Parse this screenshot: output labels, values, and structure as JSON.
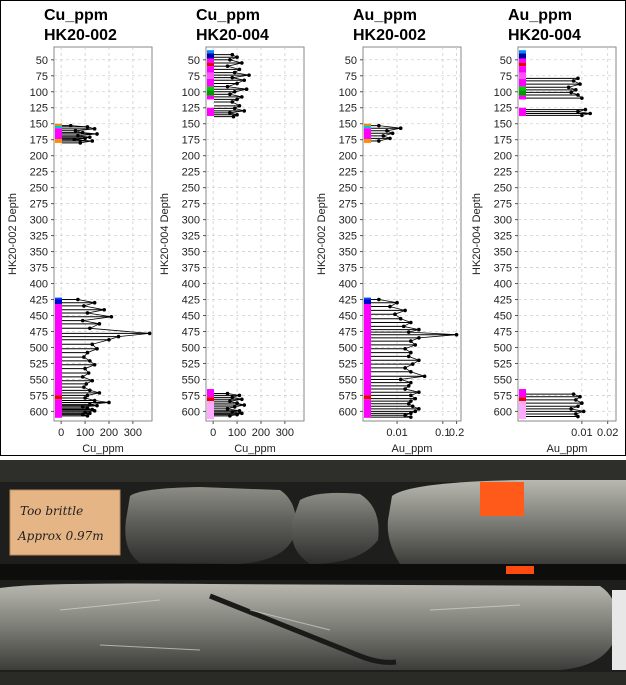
{
  "chart_data": [
    {
      "type": "scatter",
      "title": [
        "Cu_ppm",
        "HK20-002"
      ],
      "xlabel": "Cu_ppm",
      "ylabel": "HK20-002 Depth",
      "x_scale": "linear",
      "xlim": [
        -30,
        380
      ],
      "x_ticks": [
        0,
        100,
        200,
        300
      ],
      "x_tick_labels": [
        "0",
        "100",
        "200",
        "300"
      ],
      "ylim": [
        30,
        615
      ],
      "y_ticks": [
        50,
        75,
        100,
        125,
        150,
        175,
        200,
        225,
        250,
        275,
        300,
        325,
        350,
        375,
        400,
        425,
        450,
        475,
        500,
        525,
        550,
        575,
        600
      ],
      "series": [
        {
          "x": [
            40,
            110,
            140,
            60,
            90,
            150,
            70,
            120,
            100,
            55,
            130,
            80
          ],
          "y": [
            153,
            155,
            158,
            161,
            164,
            166,
            169,
            171,
            173,
            175,
            177,
            180
          ]
        },
        {
          "x": [
            70,
            140,
            95,
            180,
            110,
            210,
            90,
            160,
            120,
            370,
            240,
            200,
            130,
            150,
            110,
            95,
            120,
            140,
            100,
            115,
            90,
            130,
            105,
            95,
            120,
            160,
            110,
            100,
            140,
            200,
            120,
            150,
            90,
            110,
            130,
            140,
            100,
            120,
            90,
            110
          ],
          "y": [
            425,
            430,
            435,
            441,
            446,
            452,
            458,
            463,
            470,
            478,
            483,
            488,
            495,
            502,
            508,
            515,
            521,
            527,
            533,
            540,
            546,
            552,
            557,
            562,
            567,
            571,
            575,
            579,
            583,
            586,
            589,
            591,
            593,
            595,
            597,
            599,
            601,
            603,
            605,
            607
          ]
        }
      ],
      "strip": [
        {
          "from": 150,
          "to": 153,
          "color": "#ff7f00"
        },
        {
          "from": 153,
          "to": 157,
          "color": "#00c8c8"
        },
        {
          "from": 157,
          "to": 174,
          "color": "#ff00ff"
        },
        {
          "from": 174,
          "to": 180,
          "color": "#ff8c00"
        },
        {
          "from": 422,
          "to": 425,
          "color": "#0044ff"
        },
        {
          "from": 425,
          "to": 432,
          "color": "#0000cc"
        },
        {
          "from": 432,
          "to": 575,
          "color": "#ff00ff"
        },
        {
          "from": 575,
          "to": 581,
          "color": "#ee0000"
        },
        {
          "from": 581,
          "to": 610,
          "color": "#ff00ff"
        }
      ]
    },
    {
      "type": "scatter",
      "title": [
        "Cu_ppm",
        "HK20-004"
      ],
      "xlabel": "Cu_ppm",
      "ylabel": "HK20-004 Depth",
      "x_scale": "linear",
      "xlim": [
        -30,
        380
      ],
      "x_ticks": [
        0,
        100,
        200,
        300
      ],
      "x_tick_labels": [
        "0",
        "100",
        "200",
        "300"
      ],
      "ylim": [
        30,
        615
      ],
      "y_ticks": [
        50,
        75,
        100,
        125,
        150,
        175,
        200,
        225,
        250,
        275,
        300,
        325,
        350,
        375,
        400,
        425,
        450,
        475,
        500,
        525,
        550,
        575,
        600
      ],
      "series": [
        {
          "x": [
            80,
            100,
            70,
            120,
            60,
            110,
            90,
            150,
            80,
            130,
            100,
            60,
            140,
            90,
            70,
            120,
            100,
            80,
            110,
            90,
            130,
            70,
            100,
            85
          ],
          "y": [
            42,
            46,
            50,
            55,
            60,
            65,
            70,
            74,
            78,
            82,
            87,
            92,
            96,
            100,
            104,
            108,
            112,
            116,
            122,
            126,
            130,
            133,
            136,
            139
          ]
        },
        {
          "x": [
            60,
            110,
            80,
            120,
            70,
            100,
            130,
            90,
            60,
            110,
            80,
            120,
            100,
            70
          ],
          "y": [
            572,
            575,
            578,
            581,
            584,
            587,
            590,
            593,
            596,
            599,
            601,
            603,
            605,
            607
          ]
        }
      ],
      "strip": [
        {
          "from": 35,
          "to": 40,
          "color": "#0088ff"
        },
        {
          "from": 40,
          "to": 48,
          "color": "#0000aa"
        },
        {
          "from": 48,
          "to": 55,
          "color": "#ff00ff"
        },
        {
          "from": 55,
          "to": 60,
          "color": "#ee0000"
        },
        {
          "from": 60,
          "to": 70,
          "color": "#ff00ff"
        },
        {
          "from": 70,
          "to": 80,
          "color": "#ff55ff"
        },
        {
          "from": 80,
          "to": 92,
          "color": "#ff00ff"
        },
        {
          "from": 92,
          "to": 98,
          "color": "#00cc00"
        },
        {
          "from": 98,
          "to": 106,
          "color": "#009900"
        },
        {
          "from": 106,
          "to": 112,
          "color": "#ff00ff"
        },
        {
          "from": 125,
          "to": 138,
          "color": "#ff00ff"
        },
        {
          "from": 565,
          "to": 578,
          "color": "#ff00ff"
        },
        {
          "from": 578,
          "to": 584,
          "color": "#ee0000"
        },
        {
          "from": 584,
          "to": 612,
          "color": "#ffaaff"
        }
      ]
    },
    {
      "type": "scatter",
      "title": [
        "Au_ppm",
        "HK20-002"
      ],
      "xlabel": "Au_ppm",
      "ylabel": "HK20-002 Depth",
      "x_scale": "log",
      "xlim": [
        0.0018,
        0.25
      ],
      "x_ticks": [
        0.01,
        0.1,
        0.2
      ],
      "x_tick_labels": [
        "0.01",
        "0.1",
        "0.2"
      ],
      "ylim": [
        30,
        615
      ],
      "y_ticks": [
        50,
        75,
        100,
        125,
        150,
        175,
        200,
        225,
        250,
        275,
        300,
        325,
        350,
        375,
        400,
        425,
        450,
        475,
        500,
        525,
        550,
        575,
        600
      ],
      "series": [
        {
          "x": [
            0.004,
            0.012,
            0.006,
            0.008,
            0.005,
            0.007,
            0.004
          ],
          "y": [
            153,
            157,
            161,
            165,
            169,
            173,
            177
          ]
        },
        {
          "x": [
            0.004,
            0.01,
            0.007,
            0.015,
            0.009,
            0.012,
            0.02,
            0.014,
            0.03,
            0.018,
            0.2,
            0.03,
            0.02,
            0.025,
            0.015,
            0.02,
            0.018,
            0.03,
            0.022,
            0.015,
            0.02,
            0.04,
            0.012,
            0.02,
            0.018,
            0.015,
            0.03,
            0.02,
            0.025,
            0.02,
            0.018,
            0.022,
            0.03,
            0.025,
            0.02,
            0.015,
            0.02
          ],
          "y": [
            425,
            430,
            436,
            442,
            448,
            455,
            461,
            467,
            472,
            476,
            480,
            485,
            490,
            496,
            502,
            508,
            514,
            520,
            526,
            532,
            538,
            545,
            550,
            555,
            560,
            565,
            570,
            575,
            580,
            584,
            588,
            592,
            596,
            600,
            603,
            606,
            609
          ]
        }
      ],
      "strip": [
        {
          "from": 150,
          "to": 153,
          "color": "#ff7f00"
        },
        {
          "from": 153,
          "to": 157,
          "color": "#00c8c8"
        },
        {
          "from": 157,
          "to": 174,
          "color": "#ff00ff"
        },
        {
          "from": 174,
          "to": 180,
          "color": "#ff8c00"
        },
        {
          "from": 422,
          "to": 425,
          "color": "#0044ff"
        },
        {
          "from": 425,
          "to": 432,
          "color": "#0000cc"
        },
        {
          "from": 432,
          "to": 575,
          "color": "#ff00ff"
        },
        {
          "from": 575,
          "to": 581,
          "color": "#ee0000"
        },
        {
          "from": 581,
          "to": 610,
          "color": "#ff00ff"
        }
      ]
    },
    {
      "type": "scatter",
      "title": [
        "Au_ppm",
        "HK20-004"
      ],
      "xlabel": "Au_ppm",
      "ylabel": "HK20-004 Depth",
      "x_scale": "log",
      "xlim": [
        0.0018,
        0.025
      ],
      "x_ticks": [
        0.01,
        0.02
      ],
      "x_tick_labels": [
        "0.01",
        "0.02"
      ],
      "ylim": [
        30,
        615
      ],
      "y_ticks": [
        50,
        75,
        100,
        125,
        150,
        175,
        200,
        225,
        250,
        275,
        300,
        325,
        350,
        375,
        400,
        425,
        450,
        475,
        500,
        525,
        550,
        575,
        600
      ],
      "series": [
        {
          "x": [
            0.009,
            0.008,
            0.0095,
            0.007,
            0.0085,
            0.0075,
            0.009,
            0.01
          ],
          "y": [
            79,
            83,
            88,
            93,
            97,
            101,
            105,
            110
          ]
        },
        {
          "x": [
            0.011,
            0.009,
            0.0125,
            0.01
          ],
          "y": [
            128,
            131,
            134,
            137
          ]
        },
        {
          "x": [
            0.008,
            0.0095,
            0.0085,
            0.01,
            0.009,
            0.0075,
            0.0105,
            0.0085,
            0.009
          ],
          "y": [
            573,
            577,
            582,
            587,
            592,
            596,
            600,
            604,
            608
          ]
        }
      ],
      "strip": [
        {
          "from": 35,
          "to": 40,
          "color": "#0088ff"
        },
        {
          "from": 40,
          "to": 48,
          "color": "#0000aa"
        },
        {
          "from": 48,
          "to": 55,
          "color": "#ff00ff"
        },
        {
          "from": 55,
          "to": 60,
          "color": "#ee0000"
        },
        {
          "from": 60,
          "to": 70,
          "color": "#ff00ff"
        },
        {
          "from": 70,
          "to": 80,
          "color": "#ff55ff"
        },
        {
          "from": 80,
          "to": 92,
          "color": "#ff00ff"
        },
        {
          "from": 92,
          "to": 98,
          "color": "#00cc00"
        },
        {
          "from": 98,
          "to": 106,
          "color": "#009900"
        },
        {
          "from": 106,
          "to": 112,
          "color": "#ff00ff"
        },
        {
          "from": 125,
          "to": 138,
          "color": "#ff00ff"
        },
        {
          "from": 565,
          "to": 578,
          "color": "#ff00ff"
        },
        {
          "from": 578,
          "to": 584,
          "color": "#ee0000"
        },
        {
          "from": 584,
          "to": 612,
          "color": "#ffaaff"
        }
      ]
    }
  ],
  "photo": {
    "label_lines": [
      "Too brittle",
      "Approx 0.97m"
    ]
  }
}
